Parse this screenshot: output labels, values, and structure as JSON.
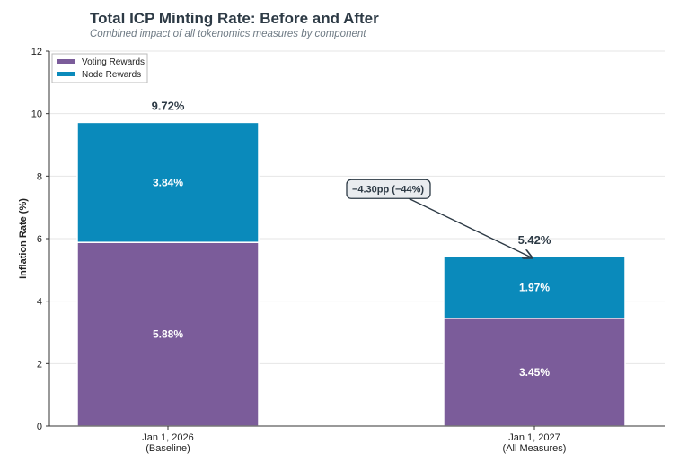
{
  "chart_data": {
    "type": "bar",
    "stacked": true,
    "title": "Total ICP Minting Rate: Before and After",
    "subtitle": "Combined impact of all tokenomics measures by component",
    "xlabel": "",
    "ylabel": "Inflation Rate (%)",
    "ylim": [
      0,
      12
    ],
    "yticks": [
      0,
      2,
      4,
      6,
      8,
      10,
      12
    ],
    "grid": "horizontal",
    "legend_placement": "top-left",
    "categories": [
      [
        "Jan 1, 2026",
        "(Baseline)"
      ],
      [
        "Jan 1, 2027",
        "(All Measures)"
      ]
    ],
    "series": [
      {
        "name": "Voting Rewards",
        "color": "#7b5c9a",
        "values": [
          5.88,
          3.45
        ],
        "labels": [
          "5.88%",
          "3.45%"
        ]
      },
      {
        "name": "Node Rewards",
        "color": "#0a8abb",
        "values": [
          3.84,
          1.97
        ],
        "labels": [
          "3.84%",
          "1.97%"
        ]
      }
    ],
    "totals": [
      "9.72%",
      "5.42%"
    ],
    "annotation": {
      "text": "−4.30pp (−44%)",
      "at_y": 7.6,
      "points_to_total": 5.42
    }
  }
}
